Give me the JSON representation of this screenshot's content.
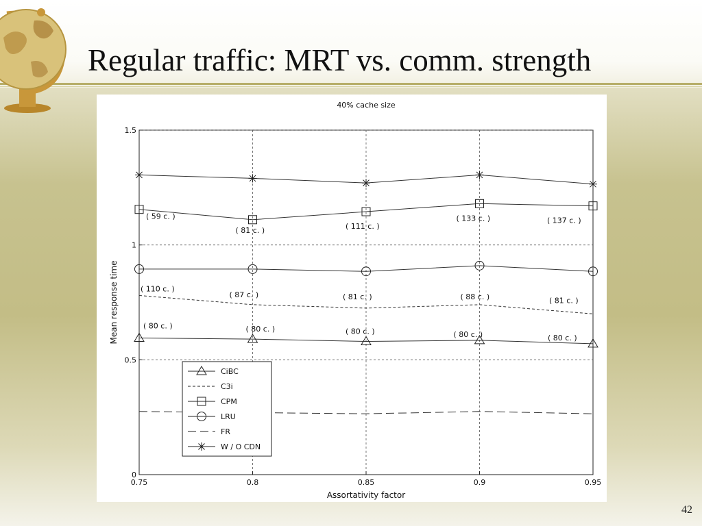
{
  "slide": {
    "title": "Regular traffic: MRT vs. comm. strength",
    "page_number": "42"
  },
  "chart_data": {
    "type": "line",
    "title": "40% cache size",
    "xlabel": "Assortativity factor",
    "ylabel": "Mean response time",
    "x": [
      0.75,
      0.8,
      0.85,
      0.9,
      0.95
    ],
    "x_tick_labels": [
      "0.75",
      "0.8",
      "0.85",
      "0.9",
      "0.95"
    ],
    "y_ticks": [
      0,
      0.5,
      1,
      1.5
    ],
    "y_tick_labels": [
      "0",
      "0.5",
      "1",
      "1.5"
    ],
    "xlim": [
      0.75,
      0.95
    ],
    "ylim": [
      0,
      1.5
    ],
    "grid": true,
    "legend_position": "bottom-left",
    "series": [
      {
        "name": "CiBC",
        "marker": "triangle",
        "dash": "solid",
        "values": [
          0.595,
          0.59,
          0.58,
          0.585,
          0.57
        ],
        "labels": [
          "( 80 c. )",
          "( 80 c. )",
          "( 80 c. )",
          "( 80 c. )",
          "( 80 c. )"
        ]
      },
      {
        "name": "C3i",
        "marker": "none",
        "dash": "short",
        "values": [
          0.78,
          0.74,
          0.725,
          0.74,
          0.7
        ],
        "labels": [
          "( 110 c. )",
          "( 87 c. )",
          "( 81 c. )",
          "( 88 c. )",
          "( 81 c. )"
        ]
      },
      {
        "name": "CPM",
        "marker": "square",
        "dash": "solid",
        "values": [
          1.155,
          1.11,
          1.145,
          1.18,
          1.17
        ],
        "labels": [
          "( 59 c. )",
          "( 81 c. )",
          "( 111 c. )",
          "( 133 c. )",
          "( 137 c. )"
        ]
      },
      {
        "name": "LRU",
        "marker": "circle",
        "dash": "solid",
        "values": [
          0.895,
          0.895,
          0.885,
          0.91,
          0.885
        ],
        "labels": []
      },
      {
        "name": "FR",
        "marker": "none",
        "dash": "long",
        "values": [
          0.275,
          0.27,
          0.265,
          0.275,
          0.265
        ],
        "labels": []
      },
      {
        "name": "W / O CDN",
        "marker": "star",
        "dash": "solid",
        "values": [
          1.305,
          1.29,
          1.27,
          1.305,
          1.265
        ],
        "labels": []
      }
    ]
  }
}
